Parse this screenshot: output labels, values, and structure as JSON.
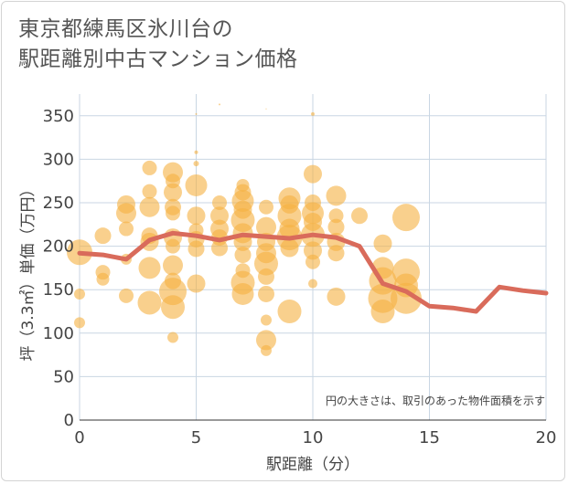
{
  "title": {
    "line1": "東京都練馬区氷川台の",
    "line2": "駅距離別中古マンション価格"
  },
  "chart_data": {
    "type": "scatter",
    "title": "東京都練馬区氷川台の駅距離別中古マンション価格",
    "xlabel": "駅距離（分）",
    "ylabel": "坪（3.3㎡）単価（万円）",
    "xlim": [
      0,
      20
    ],
    "ylim": [
      0,
      375
    ],
    "xticks": [
      0,
      5,
      10,
      15,
      20
    ],
    "yticks": [
      0,
      50,
      100,
      150,
      200,
      250,
      300,
      350
    ],
    "grid": true,
    "note": "円の大きさは、取引のあった物件面積を示す",
    "colors": {
      "bubble": "#f5b041",
      "line": "#d96b5b",
      "grid": "#c9d6e3"
    },
    "bubbles": [
      {
        "x": 0,
        "y": 193,
        "s": 14
      },
      {
        "x": 0,
        "y": 145,
        "s": 6
      },
      {
        "x": 0,
        "y": 112,
        "s": 6
      },
      {
        "x": 1,
        "y": 212,
        "s": 9
      },
      {
        "x": 1,
        "y": 170,
        "s": 8
      },
      {
        "x": 1,
        "y": 162,
        "s": 7
      },
      {
        "x": 2,
        "y": 248,
        "s": 10
      },
      {
        "x": 2,
        "y": 238,
        "s": 11
      },
      {
        "x": 2,
        "y": 220,
        "s": 8
      },
      {
        "x": 2,
        "y": 185,
        "s": 6
      },
      {
        "x": 2,
        "y": 143,
        "s": 8
      },
      {
        "x": 3,
        "y": 290,
        "s": 8
      },
      {
        "x": 3,
        "y": 263,
        "s": 8
      },
      {
        "x": 3,
        "y": 245,
        "s": 11
      },
      {
        "x": 3,
        "y": 212,
        "s": 9
      },
      {
        "x": 3,
        "y": 205,
        "s": 10
      },
      {
        "x": 3,
        "y": 175,
        "s": 12
      },
      {
        "x": 3,
        "y": 135,
        "s": 13
      },
      {
        "x": 4,
        "y": 285,
        "s": 11
      },
      {
        "x": 4,
        "y": 275,
        "s": 8
      },
      {
        "x": 4,
        "y": 262,
        "s": 10
      },
      {
        "x": 4,
        "y": 245,
        "s": 9
      },
      {
        "x": 4,
        "y": 238,
        "s": 8
      },
      {
        "x": 4,
        "y": 210,
        "s": 10
      },
      {
        "x": 4,
        "y": 200,
        "s": 8
      },
      {
        "x": 4,
        "y": 178,
        "s": 11
      },
      {
        "x": 4,
        "y": 160,
        "s": 9
      },
      {
        "x": 4,
        "y": 148,
        "s": 15
      },
      {
        "x": 4,
        "y": 130,
        "s": 13
      },
      {
        "x": 4,
        "y": 95,
        "s": 6
      },
      {
        "x": 5,
        "y": 352,
        "s": 1
      },
      {
        "x": 5,
        "y": 308,
        "s": 2
      },
      {
        "x": 5,
        "y": 295,
        "s": 3
      },
      {
        "x": 5,
        "y": 270,
        "s": 12
      },
      {
        "x": 5,
        "y": 235,
        "s": 10
      },
      {
        "x": 5,
        "y": 218,
        "s": 8
      },
      {
        "x": 5,
        "y": 208,
        "s": 9
      },
      {
        "x": 5,
        "y": 197,
        "s": 9
      },
      {
        "x": 5,
        "y": 157,
        "s": 10
      },
      {
        "x": 6,
        "y": 363,
        "s": 1
      },
      {
        "x": 6,
        "y": 250,
        "s": 8
      },
      {
        "x": 6,
        "y": 235,
        "s": 10
      },
      {
        "x": 6,
        "y": 220,
        "s": 10
      },
      {
        "x": 6,
        "y": 210,
        "s": 9
      },
      {
        "x": 6,
        "y": 198,
        "s": 9
      },
      {
        "x": 7,
        "y": 270,
        "s": 7
      },
      {
        "x": 7,
        "y": 262,
        "s": 9
      },
      {
        "x": 7,
        "y": 252,
        "s": 12
      },
      {
        "x": 7,
        "y": 242,
        "s": 10
      },
      {
        "x": 7,
        "y": 230,
        "s": 13
      },
      {
        "x": 7,
        "y": 215,
        "s": 11
      },
      {
        "x": 7,
        "y": 205,
        "s": 10
      },
      {
        "x": 7,
        "y": 190,
        "s": 9
      },
      {
        "x": 7,
        "y": 172,
        "s": 8
      },
      {
        "x": 7,
        "y": 158,
        "s": 13
      },
      {
        "x": 7,
        "y": 145,
        "s": 12
      },
      {
        "x": 8,
        "y": 358,
        "s": 0.6
      },
      {
        "x": 8,
        "y": 245,
        "s": 8
      },
      {
        "x": 8,
        "y": 222,
        "s": 11
      },
      {
        "x": 8,
        "y": 205,
        "s": 10
      },
      {
        "x": 8,
        "y": 192,
        "s": 11
      },
      {
        "x": 8,
        "y": 180,
        "s": 13
      },
      {
        "x": 8,
        "y": 165,
        "s": 9
      },
      {
        "x": 8,
        "y": 145,
        "s": 9
      },
      {
        "x": 8,
        "y": 115,
        "s": 6
      },
      {
        "x": 8,
        "y": 92,
        "s": 11
      },
      {
        "x": 8,
        "y": 80,
        "s": 6
      },
      {
        "x": 9,
        "y": 255,
        "s": 12
      },
      {
        "x": 9,
        "y": 248,
        "s": 10
      },
      {
        "x": 9,
        "y": 235,
        "s": 13
      },
      {
        "x": 9,
        "y": 220,
        "s": 11
      },
      {
        "x": 9,
        "y": 210,
        "s": 14
      },
      {
        "x": 9,
        "y": 198,
        "s": 10
      },
      {
        "x": 9,
        "y": 125,
        "s": 13
      },
      {
        "x": 10,
        "y": 352,
        "s": 2
      },
      {
        "x": 10,
        "y": 283,
        "s": 10
      },
      {
        "x": 10,
        "y": 250,
        "s": 9
      },
      {
        "x": 10,
        "y": 238,
        "s": 12
      },
      {
        "x": 10,
        "y": 228,
        "s": 10
      },
      {
        "x": 10,
        "y": 213,
        "s": 13
      },
      {
        "x": 10,
        "y": 195,
        "s": 10
      },
      {
        "x": 10,
        "y": 182,
        "s": 8
      },
      {
        "x": 10,
        "y": 157,
        "s": 5
      },
      {
        "x": 11,
        "y": 258,
        "s": 11
      },
      {
        "x": 11,
        "y": 235,
        "s": 8
      },
      {
        "x": 11,
        "y": 222,
        "s": 9
      },
      {
        "x": 11,
        "y": 205,
        "s": 10
      },
      {
        "x": 11,
        "y": 192,
        "s": 9
      },
      {
        "x": 11,
        "y": 142,
        "s": 10
      },
      {
        "x": 12,
        "y": 235,
        "s": 9
      },
      {
        "x": 13,
        "y": 203,
        "s": 10
      },
      {
        "x": 13,
        "y": 175,
        "s": 12
      },
      {
        "x": 13,
        "y": 160,
        "s": 15
      },
      {
        "x": 13,
        "y": 140,
        "s": 16
      },
      {
        "x": 13,
        "y": 125,
        "s": 13
      },
      {
        "x": 14,
        "y": 233,
        "s": 15
      },
      {
        "x": 14,
        "y": 170,
        "s": 15
      },
      {
        "x": 14,
        "y": 155,
        "s": 13
      },
      {
        "x": 14,
        "y": 140,
        "s": 17
      }
    ],
    "series": [
      {
        "name": "平均坪単価",
        "x": [
          0,
          1,
          2,
          3,
          4,
          5,
          6,
          7,
          8,
          9,
          10,
          11,
          12,
          13,
          14,
          15,
          16,
          17,
          18,
          19,
          20
        ],
        "y": [
          192,
          190,
          185,
          207,
          215,
          212,
          207,
          213,
          211,
          209,
          213,
          210,
          200,
          157,
          148,
          131,
          129,
          125,
          153,
          149,
          146
        ]
      }
    ]
  }
}
